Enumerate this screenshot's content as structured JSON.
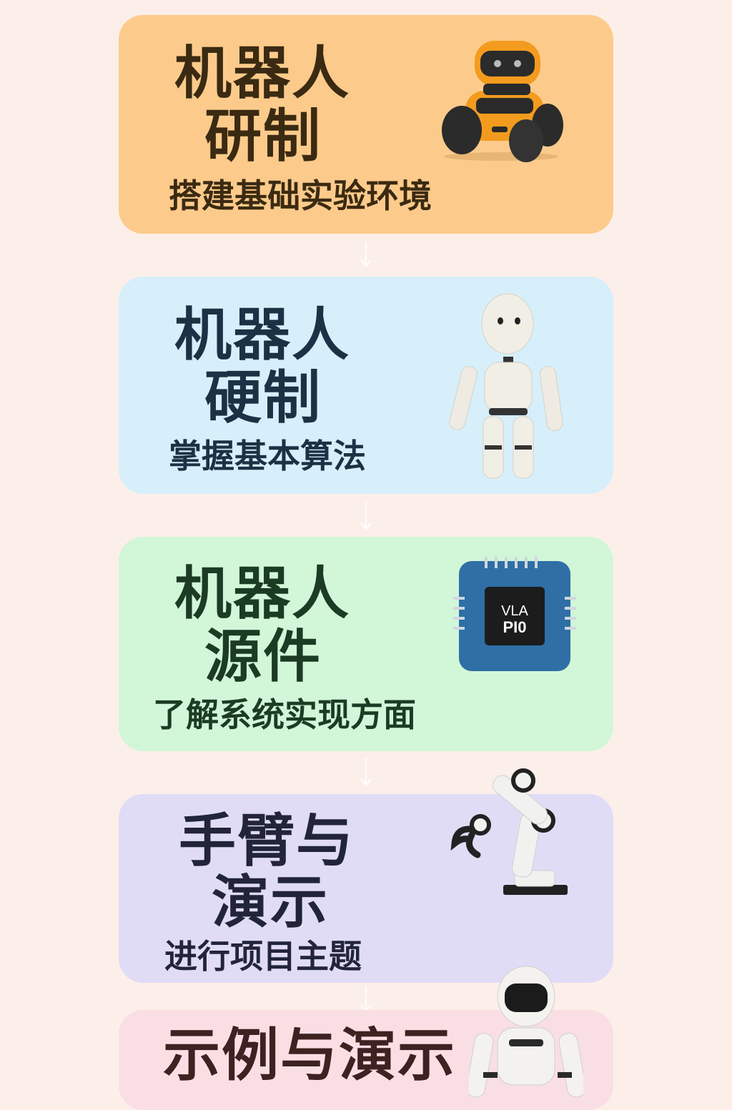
{
  "steps": [
    {
      "title_line1": "机器人",
      "title_line2": "研制",
      "subtitle": "搭建基础实验环境",
      "icon": "wheeled-robot-icon",
      "color": "#fccb8b",
      "text_color": "#3b2a12"
    },
    {
      "title_line1": "机器人",
      "title_line2": "硬制",
      "subtitle": "掌握基本算法",
      "icon": "humanoid-robot-icon",
      "color": "#d6effb",
      "text_color": "#1d3145"
    },
    {
      "title_line1": "机器人",
      "title_line2": "源件",
      "subtitle": "了解系统实现方面",
      "icon": "chip-icon",
      "color": "#d2f6d8",
      "text_color": "#1c3b24",
      "chip_line1": "VLA",
      "chip_line2": "PI0"
    },
    {
      "title_line1": "手臂与",
      "title_line2": "演示",
      "subtitle": "进行项目主题",
      "icon": "robot-arm-icon",
      "color": "#e1dcf6",
      "text_color": "#22253a"
    },
    {
      "title_line1": "示例与演示",
      "icon": "astronaut-robot-icon",
      "color": "#f9dfe4",
      "text_color": "#3e2222"
    }
  ]
}
